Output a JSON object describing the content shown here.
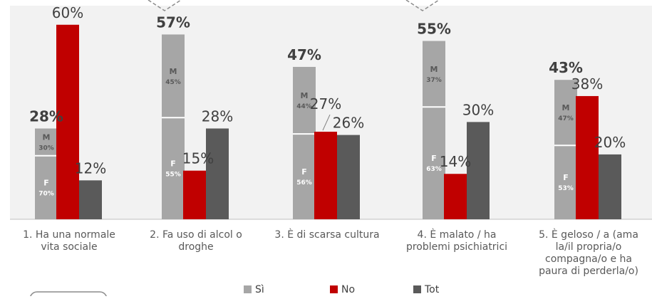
{
  "chart_data": {
    "type": "bar",
    "ylim": [
      0,
      65
    ],
    "categories": [
      {
        "lines": [
          "1. Ha una normale",
          "vita sociale"
        ]
      },
      {
        "lines": [
          "2. Fa uso di alcol o",
          "droghe"
        ]
      },
      {
        "lines": [
          "3. È di  scarsa cultura"
        ]
      },
      {
        "lines": [
          "4. È malato / ha",
          "problemi psichiatrici"
        ]
      },
      {
        "lines": [
          "5. È geloso / a (ama",
          "la/il propria/o",
          "compagna/o e ha",
          "paura di perderla/o)"
        ]
      }
    ],
    "series": [
      {
        "name": "Sì",
        "color": "#a6a6a6",
        "values": [
          28,
          57,
          47,
          55,
          43
        ],
        "labels": [
          "28%",
          "57%",
          "47%",
          "55%",
          "43%"
        ],
        "split": [
          {
            "m": 30,
            "f": 70
          },
          {
            "m": 45,
            "f": 55
          },
          {
            "m": 44,
            "f": 56
          },
          {
            "m": 37,
            "f": 63
          },
          {
            "m": 47,
            "f": 53
          }
        ]
      },
      {
        "name": "No",
        "color": "#c00000",
        "values": [
          60,
          15,
          27,
          14,
          38
        ],
        "labels": [
          "60%",
          "15%",
          "27%",
          "14%",
          "38%"
        ]
      },
      {
        "name": "Tot",
        "color": "#5a5a5a",
        "values": [
          12,
          28,
          26,
          30,
          20
        ],
        "labels": [
          "12%",
          "28%",
          "26%",
          "30%",
          "20%"
        ]
      }
    ],
    "split_letters": {
      "m": "M",
      "f": "F"
    },
    "legend_position": "bottom-center",
    "grid": false
  }
}
